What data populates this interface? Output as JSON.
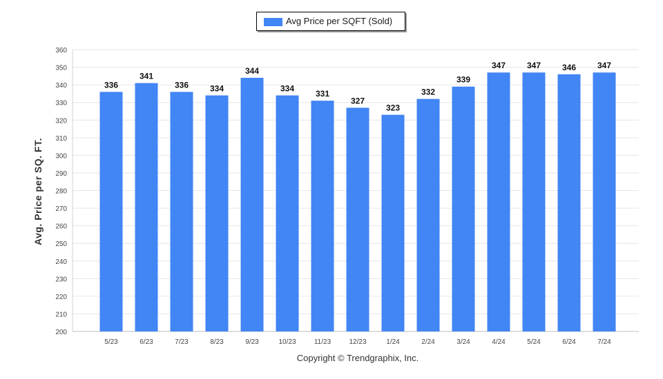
{
  "chart_data": {
    "type": "bar",
    "categories": [
      "5/23",
      "6/23",
      "7/23",
      "8/23",
      "9/23",
      "10/23",
      "11/23",
      "12/23",
      "1/24",
      "2/24",
      "3/24",
      "4/24",
      "5/24",
      "6/24",
      "7/24"
    ],
    "series": [
      {
        "name": "Avg Price per SQFT (Sold)",
        "values": [
          336,
          341,
          336,
          334,
          344,
          334,
          331,
          327,
          323,
          332,
          339,
          347,
          347,
          346,
          347
        ]
      }
    ],
    "ylabel": "Avg. Price per SQ. FT.",
    "xlabel": "",
    "ylim": [
      200,
      360
    ],
    "yticks": [
      200,
      210,
      220,
      230,
      240,
      250,
      260,
      270,
      280,
      290,
      300,
      310,
      320,
      330,
      340,
      350,
      360
    ],
    "grid": true,
    "legend": "top-center",
    "data_labels": true,
    "bar_color": "#4285f4"
  },
  "footer": {
    "copyright": "Copyright © Trendgraphix, Inc."
  }
}
